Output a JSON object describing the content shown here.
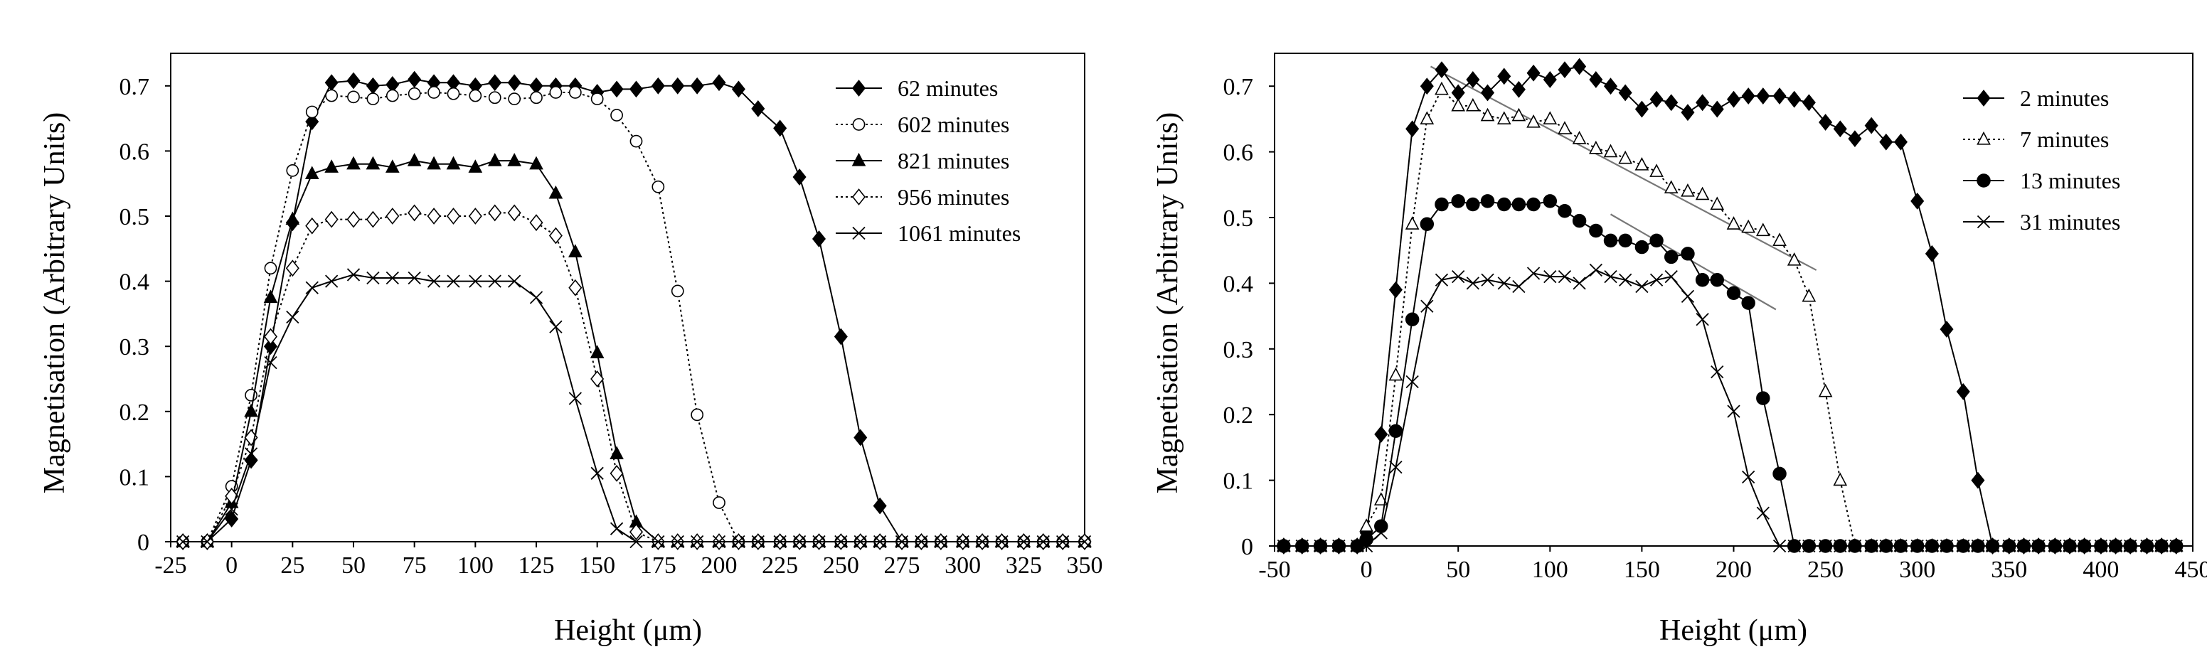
{
  "chart_data": [
    {
      "type": "line",
      "xlabel": "Height (μm)",
      "ylabel": "Magnetisation (Arbitrary Units)",
      "xlim": [
        -25,
        350
      ],
      "ylim": [
        0,
        0.75
      ],
      "xticks": [
        -25,
        0,
        25,
        50,
        75,
        100,
        125,
        150,
        175,
        200,
        225,
        250,
        275,
        300,
        325,
        350
      ],
      "yticks": [
        0,
        0.1,
        0.2,
        0.3,
        0.4,
        0.5,
        0.6,
        0.7
      ],
      "x_tick_labels": [
        "-25",
        "0",
        "25",
        "50",
        "75",
        "100",
        "125",
        "150",
        "175",
        "200",
        "225",
        "250",
        "275",
        "300",
        "325",
        "350"
      ],
      "y_tick_labels": [
        "0",
        "0.1",
        "0.2",
        "0.3",
        "0.4",
        "0.5",
        "0.6",
        "0.7"
      ],
      "legend_position": "top-right",
      "series": [
        {
          "name": "62 minutes",
          "marker": "diamond-filled",
          "dash": "solid",
          "x": [
            -20,
            -10,
            0,
            8,
            16,
            25,
            33,
            41,
            50,
            58,
            66,
            75,
            83,
            91,
            100,
            108,
            116,
            125,
            133,
            141,
            150,
            158,
            166,
            175,
            183,
            191,
            200,
            208,
            216,
            225,
            233,
            241,
            250,
            258,
            266,
            275,
            283,
            291,
            300,
            308,
            316,
            325,
            333,
            341,
            350
          ],
          "y": [
            0,
            0,
            0.035,
            0.125,
            0.3,
            0.49,
            0.645,
            0.705,
            0.708,
            0.7,
            0.702,
            0.71,
            0.705,
            0.705,
            0.7,
            0.705,
            0.705,
            0.7,
            0.7,
            0.7,
            0.69,
            0.695,
            0.695,
            0.7,
            0.7,
            0.7,
            0.705,
            0.695,
            0.665,
            0.635,
            0.56,
            0.465,
            0.315,
            0.16,
            0.055,
            0,
            0,
            0,
            0,
            0,
            0,
            0,
            0,
            0,
            0
          ]
        },
        {
          "name": "602 minutes",
          "marker": "circle-open",
          "dash": "dotted",
          "x": [
            -20,
            -10,
            0,
            8,
            16,
            25,
            33,
            41,
            50,
            58,
            66,
            75,
            83,
            91,
            100,
            108,
            116,
            125,
            133,
            141,
            150,
            158,
            166,
            175,
            183,
            191,
            200,
            208,
            216,
            225,
            233,
            241,
            250,
            258,
            266,
            275,
            283,
            291,
            300,
            308,
            316,
            325,
            333,
            341,
            350
          ],
          "y": [
            0,
            0,
            0.085,
            0.225,
            0.42,
            0.57,
            0.66,
            0.685,
            0.683,
            0.68,
            0.685,
            0.688,
            0.69,
            0.688,
            0.685,
            0.682,
            0.68,
            0.682,
            0.69,
            0.69,
            0.68,
            0.655,
            0.615,
            0.545,
            0.385,
            0.195,
            0.06,
            0,
            0,
            0,
            0,
            0,
            0,
            0,
            0,
            0,
            0,
            0,
            0,
            0,
            0,
            0,
            0,
            0,
            0
          ]
        },
        {
          "name": "821 minutes",
          "marker": "triangle-filled",
          "dash": "solid",
          "x": [
            -20,
            -10,
            0,
            8,
            16,
            25,
            33,
            41,
            50,
            58,
            66,
            75,
            83,
            91,
            100,
            108,
            116,
            125,
            133,
            141,
            150,
            158,
            166,
            175,
            183,
            191,
            200,
            208,
            216,
            225,
            233,
            241,
            250,
            258,
            266,
            275,
            283,
            291,
            300,
            308,
            316,
            325,
            333,
            341,
            350
          ],
          "y": [
            0,
            0,
            0.06,
            0.2,
            0.375,
            0.495,
            0.565,
            0.575,
            0.58,
            0.58,
            0.575,
            0.585,
            0.58,
            0.58,
            0.575,
            0.585,
            0.585,
            0.58,
            0.535,
            0.445,
            0.29,
            0.135,
            0.03,
            0,
            0,
            0,
            0,
            0,
            0,
            0,
            0,
            0,
            0,
            0,
            0,
            0,
            0,
            0,
            0,
            0,
            0,
            0,
            0,
            0,
            0
          ]
        },
        {
          "name": "956 minutes",
          "marker": "diamond-open",
          "dash": "dotted",
          "x": [
            -20,
            -10,
            0,
            8,
            16,
            25,
            33,
            41,
            50,
            58,
            66,
            75,
            83,
            91,
            100,
            108,
            116,
            125,
            133,
            141,
            150,
            158,
            166,
            175,
            183,
            191,
            200,
            208,
            216,
            225,
            233,
            241,
            250,
            258,
            266,
            275,
            283,
            291,
            300,
            308,
            316,
            325,
            333,
            341,
            350
          ],
          "y": [
            0,
            0,
            0.07,
            0.16,
            0.315,
            0.42,
            0.485,
            0.495,
            0.495,
            0.495,
            0.5,
            0.505,
            0.5,
            0.5,
            0.5,
            0.505,
            0.505,
            0.49,
            0.47,
            0.39,
            0.25,
            0.105,
            0.015,
            0,
            0,
            0,
            0,
            0,
            0,
            0,
            0,
            0,
            0,
            0,
            0,
            0,
            0,
            0,
            0,
            0,
            0,
            0,
            0,
            0,
            0
          ]
        },
        {
          "name": "1061 minutes",
          "marker": "x",
          "dash": "solid",
          "x": [
            -20,
            -10,
            0,
            8,
            16,
            25,
            33,
            41,
            50,
            58,
            66,
            75,
            83,
            91,
            100,
            108,
            116,
            125,
            133,
            141,
            150,
            158,
            166,
            175,
            183,
            191,
            200,
            208,
            216,
            225,
            233,
            241,
            250,
            258,
            266,
            275,
            283,
            291,
            300,
            308,
            316,
            325,
            333,
            341,
            350
          ],
          "y": [
            0,
            0,
            0.05,
            0.135,
            0.275,
            0.345,
            0.39,
            0.4,
            0.41,
            0.405,
            0.405,
            0.405,
            0.4,
            0.4,
            0.4,
            0.4,
            0.4,
            0.375,
            0.33,
            0.22,
            0.105,
            0.02,
            0,
            0,
            0,
            0,
            0,
            0,
            0,
            0,
            0,
            0,
            0,
            0,
            0,
            0,
            0,
            0,
            0,
            0,
            0,
            0,
            0,
            0,
            0
          ]
        }
      ]
    },
    {
      "type": "line",
      "xlabel": "Height (μm)",
      "ylabel": "Magnetisation (Arbitrary Units)",
      "xlim": [
        -50,
        450
      ],
      "ylim": [
        0,
        0.75
      ],
      "xticks": [
        -50,
        0,
        50,
        100,
        150,
        200,
        250,
        300,
        350,
        400,
        450
      ],
      "yticks": [
        0,
        0.1,
        0.2,
        0.3,
        0.4,
        0.5,
        0.6,
        0.7
      ],
      "x_tick_labels": [
        "-50",
        "0",
        "50",
        "100",
        "150",
        "200",
        "250",
        "300",
        "350",
        "400",
        "450"
      ],
      "y_tick_labels": [
        "0",
        "0.1",
        "0.2",
        "0.3",
        "0.4",
        "0.5",
        "0.6",
        "0.7"
      ],
      "legend_position": "top-right",
      "series": [
        {
          "name": "2 minutes",
          "marker": "diamond-filled",
          "dash": "solid",
          "x": [
            -45,
            -35,
            -25,
            -15,
            -5,
            0,
            8,
            16,
            25,
            33,
            41,
            50,
            58,
            66,
            75,
            83,
            91,
            100,
            108,
            116,
            125,
            133,
            141,
            150,
            158,
            166,
            175,
            183,
            191,
            200,
            208,
            216,
            225,
            233,
            241,
            250,
            258,
            266,
            275,
            283,
            291,
            300,
            308,
            316,
            325,
            333,
            341,
            350,
            358,
            366,
            375,
            383,
            391,
            400,
            408,
            416,
            425,
            433,
            441
          ],
          "y": [
            0,
            0,
            0,
            0,
            0,
            0.02,
            0.17,
            0.39,
            0.635,
            0.7,
            0.725,
            0.69,
            0.71,
            0.69,
            0.715,
            0.695,
            0.72,
            0.71,
            0.725,
            0.73,
            0.71,
            0.7,
            0.69,
            0.665,
            0.68,
            0.675,
            0.66,
            0.675,
            0.665,
            0.68,
            0.685,
            0.685,
            0.685,
            0.68,
            0.675,
            0.645,
            0.635,
            0.62,
            0.64,
            0.615,
            0.615,
            0.525,
            0.445,
            0.33,
            0.235,
            0.1,
            0,
            0,
            0,
            0,
            0,
            0,
            0,
            0,
            0,
            0,
            0,
            0,
            0
          ]
        },
        {
          "name": "7 minutes",
          "marker": "triangle-open",
          "dash": "dotted",
          "x": [
            -45,
            -35,
            -25,
            -15,
            -5,
            0,
            8,
            16,
            25,
            33,
            41,
            50,
            58,
            66,
            75,
            83,
            91,
            100,
            108,
            116,
            125,
            133,
            141,
            150,
            158,
            166,
            175,
            183,
            191,
            200,
            208,
            216,
            225,
            233,
            241,
            250,
            258,
            266,
            275,
            283,
            291,
            300,
            308,
            316,
            325,
            333,
            341,
            350,
            358,
            366,
            375,
            383,
            391,
            400,
            408,
            416,
            425,
            433,
            441
          ],
          "y": [
            0,
            0,
            0,
            0,
            0,
            0.03,
            0.07,
            0.26,
            0.49,
            0.65,
            0.695,
            0.67,
            0.67,
            0.655,
            0.65,
            0.655,
            0.645,
            0.65,
            0.635,
            0.62,
            0.605,
            0.6,
            0.59,
            0.58,
            0.57,
            0.545,
            0.54,
            0.535,
            0.52,
            0.49,
            0.485,
            0.48,
            0.465,
            0.435,
            0.38,
            0.235,
            0.1,
            0,
            0,
            0,
            0,
            0,
            0,
            0,
            0,
            0,
            0,
            0,
            0,
            0,
            0,
            0,
            0,
            0,
            0,
            0,
            0,
            0,
            0
          ]
        },
        {
          "name": "13 minutes",
          "marker": "circle-filled",
          "dash": "solid",
          "x": [
            -45,
            -35,
            -25,
            -15,
            -5,
            0,
            8,
            16,
            25,
            33,
            41,
            50,
            58,
            66,
            75,
            83,
            91,
            100,
            108,
            116,
            125,
            133,
            141,
            150,
            158,
            166,
            175,
            183,
            191,
            200,
            208,
            216,
            225,
            233,
            241,
            250,
            258,
            266,
            275,
            283,
            291,
            300,
            308,
            316,
            325,
            333,
            341,
            350,
            358,
            366,
            375,
            383,
            391,
            400,
            408,
            416,
            425,
            433,
            441
          ],
          "y": [
            0,
            0,
            0,
            0,
            0,
            0.01,
            0.03,
            0.175,
            0.345,
            0.49,
            0.52,
            0.525,
            0.52,
            0.525,
            0.52,
            0.52,
            0.52,
            0.525,
            0.51,
            0.495,
            0.48,
            0.465,
            0.465,
            0.455,
            0.465,
            0.44,
            0.445,
            0.405,
            0.405,
            0.385,
            0.37,
            0.225,
            0.11,
            0,
            0,
            0,
            0,
            0,
            0,
            0,
            0,
            0,
            0,
            0,
            0,
            0,
            0,
            0,
            0,
            0,
            0,
            0,
            0,
            0,
            0,
            0,
            0,
            0,
            0
          ]
        },
        {
          "name": "31 minutes",
          "marker": "x",
          "dash": "solid",
          "x": [
            -45,
            -35,
            -25,
            -15,
            -5,
            0,
            8,
            16,
            25,
            33,
            41,
            50,
            58,
            66,
            75,
            83,
            91,
            100,
            108,
            116,
            125,
            133,
            141,
            150,
            158,
            166,
            175,
            183,
            191,
            200,
            208,
            216,
            225,
            233,
            241,
            250,
            258,
            266,
            275,
            283,
            291,
            300,
            308,
            316,
            325,
            333,
            341,
            350,
            358,
            366,
            375,
            383,
            391,
            400,
            408,
            416,
            425,
            433,
            441
          ],
          "y": [
            0,
            0,
            0,
            0,
            0,
            0,
            0.02,
            0.12,
            0.25,
            0.365,
            0.405,
            0.41,
            0.4,
            0.405,
            0.4,
            0.395,
            0.415,
            0.41,
            0.41,
            0.4,
            0.42,
            0.41,
            0.405,
            0.395,
            0.405,
            0.41,
            0.38,
            0.345,
            0.265,
            0.205,
            0.105,
            0.05,
            0,
            0,
            0,
            0,
            0,
            0,
            0,
            0,
            0,
            0,
            0,
            0,
            0,
            0,
            0,
            0,
            0,
            0,
            0,
            0,
            0,
            0,
            0,
            0,
            0,
            0,
            0
          ]
        }
      ],
      "trend_lines": [
        {
          "name": "7 minutes trend",
          "x": [
            35,
            245
          ],
          "y": [
            0.73,
            0.42
          ]
        },
        {
          "name": "13 minutes trend",
          "x": [
            133,
            223
          ],
          "y": [
            0.505,
            0.36
          ]
        }
      ]
    }
  ]
}
